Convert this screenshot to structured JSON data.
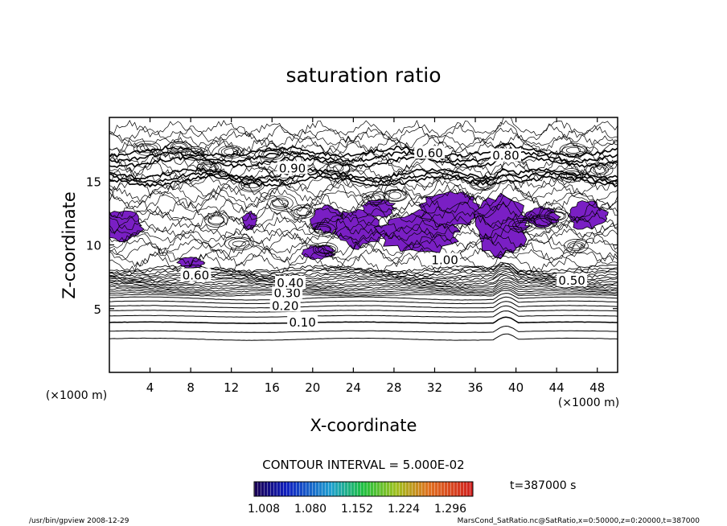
{
  "chart_data": {
    "type": "contour",
    "title": "saturation ratio",
    "xlabel": "X-coordinate",
    "ylabel": "Z-coordinate",
    "x_unit": "(×1000 m)",
    "y_unit": "(×1000 m)",
    "xlim": [
      0,
      50
    ],
    "ylim": [
      0,
      20
    ],
    "x_ticks": [
      4,
      8,
      12,
      16,
      20,
      24,
      28,
      32,
      36,
      40,
      44,
      48
    ],
    "y_ticks": [
      5,
      10,
      15
    ],
    "contour_interval_text": "CONTOUR INTERVAL = 5.000E-02",
    "contour_labels": [
      {
        "text": "0.10",
        "x": 19,
        "z": 3.9
      },
      {
        "text": "0.20",
        "x": 17.3,
        "z": 5.2
      },
      {
        "text": "0.30",
        "x": 17.5,
        "z": 6.2
      },
      {
        "text": "0.40",
        "x": 17.8,
        "z": 7.0
      },
      {
        "text": "0.50",
        "x": 45.5,
        "z": 7.2
      },
      {
        "text": "0.60",
        "x": 31.5,
        "z": 17.2
      },
      {
        "text": "0.80",
        "x": 39.0,
        "z": 17.0
      },
      {
        "text": "0.90",
        "x": 18.0,
        "z": 16.0
      },
      {
        "text": "1.00",
        "x": 33.0,
        "z": 8.8
      },
      {
        "text": "0.60",
        "x": 8.5,
        "z": 7.6
      }
    ],
    "color_scale": {
      "min": 1.008,
      "max": 1.32,
      "tick_labels": [
        "1.008",
        "1.080",
        "1.152",
        "1.224",
        "1.296"
      ]
    },
    "time_text": "t=387000 s",
    "footer_left": "/usr/bin/gpview  2008-12-29",
    "footer_right": "MarsCond_SatRatio.nc@SatRatio,x=0:50000,z=0:20000,t=387000",
    "colors": {
      "shade": "#7a1fc4",
      "line": "#000000"
    }
  }
}
